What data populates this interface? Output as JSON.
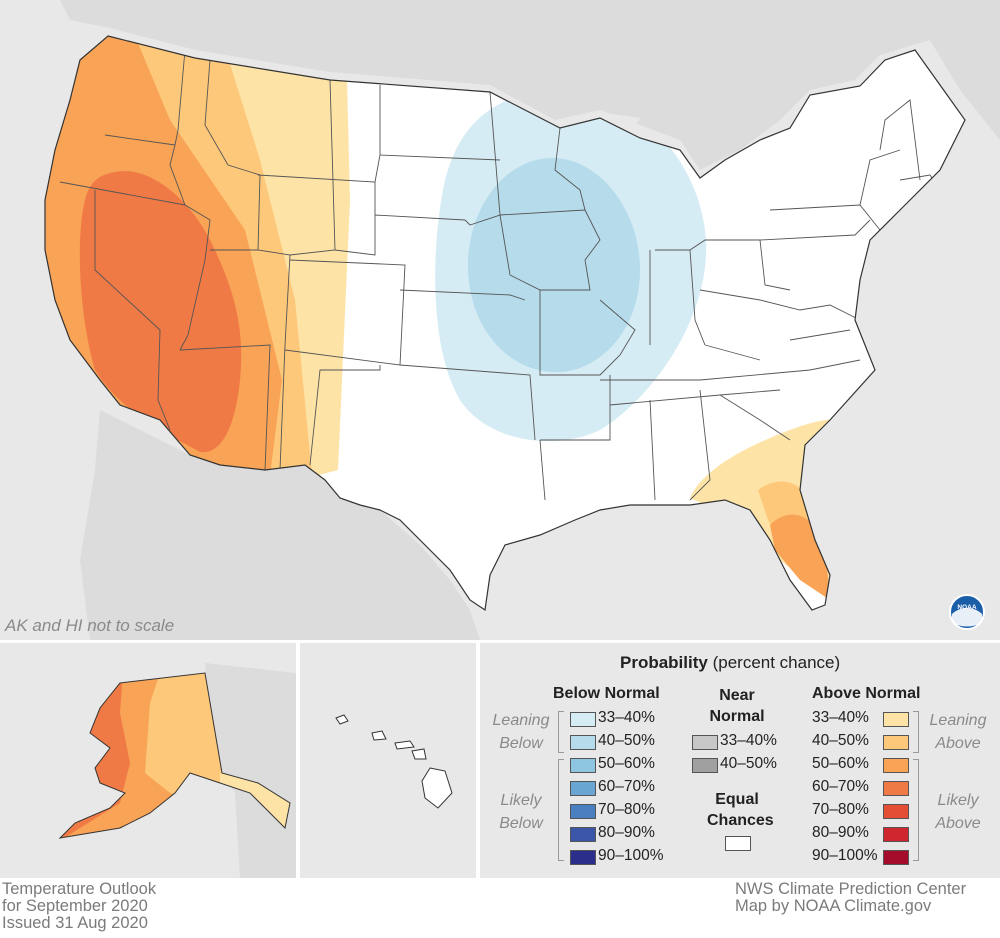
{
  "map": {
    "scale_note": "AK and HI not to scale",
    "colors": {
      "land_bg": "#e8e8e8",
      "neighbor_land": "#dcdcdc",
      "water": "#ffffff",
      "us_base": "#ffffff",
      "state_lines": "#555555"
    }
  },
  "legend": {
    "title_bold": "Probability",
    "title_rest": "(percent chance)",
    "below_normal": {
      "heading": "Below Normal",
      "leaning_label": [
        "Leaning",
        "Below"
      ],
      "likely_label": [
        "Likely",
        "Below"
      ],
      "entries": [
        {
          "label": "33–40%",
          "color": "#d6ecf5"
        },
        {
          "label": "40–50%",
          "color": "#b6dbeb"
        },
        {
          "label": "50–60%",
          "color": "#8ec5e0"
        },
        {
          "label": "60–70%",
          "color": "#6aa6d2"
        },
        {
          "label": "70–80%",
          "color": "#4a7fc0"
        },
        {
          "label": "80–90%",
          "color": "#3b56a8"
        },
        {
          "label": "90–100%",
          "color": "#2b2e8a"
        }
      ]
    },
    "near_normal": {
      "heading": [
        "Near",
        "Normal"
      ],
      "entries": [
        {
          "label": "33–40%",
          "color": "#c8c8c8"
        },
        {
          "label": "40–50%",
          "color": "#a0a0a0"
        }
      ]
    },
    "equal_chances": {
      "heading": [
        "Equal",
        "Chances"
      ],
      "color": "#ffffff"
    },
    "above_normal": {
      "heading": "Above Normal",
      "leaning_label": [
        "Leaning",
        "Above"
      ],
      "likely_label": [
        "Likely",
        "Above"
      ],
      "entries": [
        {
          "label": "33–40%",
          "color": "#fde3a6"
        },
        {
          "label": "40–50%",
          "color": "#fdc879"
        },
        {
          "label": "50–60%",
          "color": "#f8a355"
        },
        {
          "label": "60–70%",
          "color": "#f07a45"
        },
        {
          "label": "70–80%",
          "color": "#e44e34"
        },
        {
          "label": "80–90%",
          "color": "#cf2630"
        },
        {
          "label": "90–100%",
          "color": "#a50b2b"
        }
      ]
    }
  },
  "footer": {
    "left": [
      "Temperature Outlook",
      "for September 2020",
      "Issued 31 Aug 2020"
    ],
    "right": [
      "NWS Climate Prediction Center",
      "Map by NOAA Climate.gov"
    ]
  },
  "logo": {
    "text": "NOAA"
  }
}
